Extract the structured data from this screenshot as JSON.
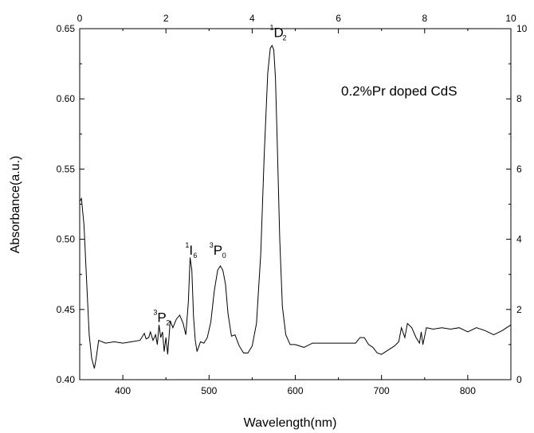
{
  "chart_data": {
    "type": "line",
    "xlabel": "Wavelength(nm)",
    "ylabel": "Absorbance(a.u.)",
    "xlim": [
      350,
      850
    ],
    "ylim": [
      0.4,
      0.65
    ],
    "x_ticks": [
      400,
      500,
      600,
      700,
      800
    ],
    "x_tick_labels": [
      "400",
      "500",
      "600",
      "700",
      "800"
    ],
    "y_ticks": [
      0.4,
      0.45,
      0.5,
      0.55,
      0.6,
      0.65
    ],
    "y_tick_labels": [
      "0.40",
      "0.45",
      "0.50",
      "0.55",
      "0.60",
      "0.65"
    ],
    "top_axis": {
      "range": [
        0,
        10
      ],
      "ticks": [
        0,
        2,
        4,
        6,
        8,
        10
      ],
      "tick_labels": [
        "0",
        "2",
        "4",
        "6",
        "8",
        "10"
      ]
    },
    "right_axis": {
      "range": [
        0,
        10
      ],
      "ticks": [
        0,
        2,
        4,
        6,
        8,
        10
      ],
      "tick_labels": [
        "0",
        "2",
        "4",
        "6",
        "8",
        "10"
      ]
    },
    "grid": false,
    "legend": "0.2%Pr doped CdS",
    "legend_position": "top-right",
    "line_color": "#000000",
    "series": [
      {
        "x": [
          350,
          352,
          355,
          358,
          361,
          364,
          367,
          369,
          372,
          376,
          380,
          390,
          400,
          410,
          420,
          425,
          427,
          430,
          432,
          435,
          438,
          440,
          442,
          444,
          446,
          448,
          450,
          452,
          455,
          458,
          462,
          466,
          470,
          473,
          476,
          478,
          480,
          482,
          484,
          486,
          490,
          494,
          498,
          502,
          506,
          510,
          513,
          516,
          519,
          522,
          526,
          530,
          535,
          540,
          545,
          550,
          555,
          560,
          564,
          568,
          571,
          573,
          575,
          577,
          579,
          582,
          585,
          589,
          594,
          600,
          610,
          620,
          640,
          660,
          670,
          675,
          680,
          685,
          690,
          695,
          700,
          710,
          715,
          720,
          723,
          727,
          730,
          735,
          740,
          744,
          746,
          748,
          752,
          760,
          770,
          780,
          790,
          800,
          810,
          820,
          830,
          840,
          845,
          850
        ],
        "y": [
          0.527,
          0.529,
          0.51,
          0.47,
          0.432,
          0.415,
          0.408,
          0.415,
          0.428,
          0.427,
          0.426,
          0.427,
          0.426,
          0.427,
          0.428,
          0.433,
          0.429,
          0.43,
          0.434,
          0.428,
          0.432,
          0.425,
          0.439,
          0.43,
          0.434,
          0.42,
          0.43,
          0.418,
          0.442,
          0.437,
          0.443,
          0.446,
          0.44,
          0.432,
          0.455,
          0.487,
          0.478,
          0.445,
          0.428,
          0.42,
          0.427,
          0.426,
          0.43,
          0.441,
          0.463,
          0.478,
          0.481,
          0.478,
          0.468,
          0.447,
          0.431,
          0.432,
          0.424,
          0.419,
          0.419,
          0.424,
          0.44,
          0.49,
          0.56,
          0.618,
          0.636,
          0.638,
          0.635,
          0.615,
          0.57,
          0.5,
          0.452,
          0.432,
          0.425,
          0.425,
          0.423,
          0.426,
          0.426,
          0.426,
          0.426,
          0.43,
          0.43,
          0.425,
          0.423,
          0.419,
          0.418,
          0.422,
          0.424,
          0.427,
          0.437,
          0.43,
          0.44,
          0.437,
          0.43,
          0.426,
          0.434,
          0.425,
          0.437,
          0.436,
          0.437,
          0.436,
          0.437,
          0.434,
          0.437,
          0.435,
          0.432,
          0.435,
          0.437,
          0.439
        ]
      }
    ],
    "peak_labels": [
      {
        "sup": "3",
        "main": "P",
        "sub": "2",
        "x": 440,
        "y": 0.441
      },
      {
        "sup": "1",
        "main": "I",
        "sub": "6",
        "x": 477,
        "y": 0.489
      },
      {
        "sup": "3",
        "main": "P",
        "sub": "0",
        "x": 505,
        "y": 0.489
      },
      {
        "sup": "1",
        "main": "D",
        "sub": "2",
        "x": 575,
        "y": 0.644
      }
    ]
  }
}
